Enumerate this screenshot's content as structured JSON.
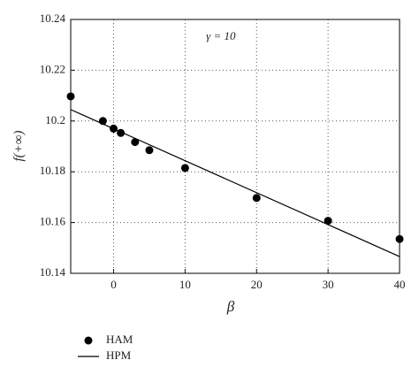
{
  "chart_data": {
    "type": "scatter",
    "x_label": "β",
    "y_label": "f(+∞)",
    "annotation": "γ = 10",
    "xlim": [
      -6,
      40
    ],
    "xticks": [
      0,
      10,
      20,
      30,
      40
    ],
    "ylim": [
      10.14,
      10.24
    ],
    "yticks": [
      10.14,
      10.16,
      10.18,
      10.2,
      10.22,
      10.24
    ],
    "grid": true,
    "legend": "bottom-left",
    "series": [
      {
        "name": "HAM",
        "type": "scatter",
        "color": "#000000",
        "x": [
          -6,
          -1.5,
          0,
          1,
          3,
          5,
          10,
          20,
          30,
          40
        ],
        "values": [
          10.2097,
          10.2,
          10.197,
          10.1953,
          10.1917,
          10.1885,
          10.1815,
          10.1697,
          10.1607,
          10.1535
        ]
      },
      {
        "name": "HPM",
        "type": "line",
        "color": "#000000",
        "x": [
          -6,
          40
        ],
        "values": [
          10.2045,
          10.1466
        ]
      }
    ]
  }
}
